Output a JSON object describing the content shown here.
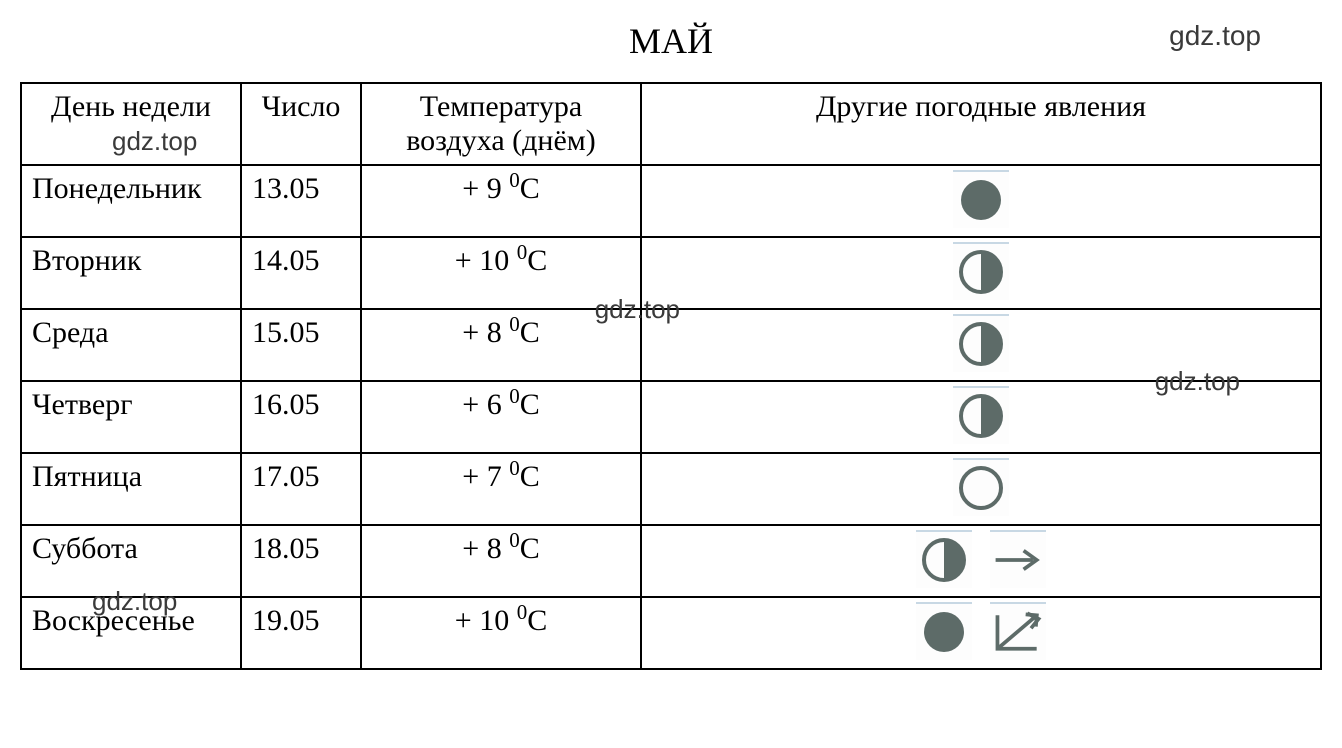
{
  "title": "МАЙ",
  "watermarks": {
    "top_right": "gdz.top",
    "in_header": "gdz.top",
    "mid_temp": "gdz.top",
    "right_mid": "gdz.top",
    "bottom_left": "gdz.top"
  },
  "headers": {
    "day": "День недели",
    "date": "Число",
    "temp": "Температура воздуха (днём)",
    "weather": "Другие погодные явления"
  },
  "colors": {
    "icon_fill": "#5d6b68",
    "icon_stroke": "#5d6b68",
    "icon_bg": "#fdfdfd",
    "icon_topline": "#c8d8e4",
    "text": "#000000",
    "border": "#000000",
    "watermark": "#3a3a3a"
  },
  "rows": [
    {
      "day": "Понедельник",
      "date": "13.05",
      "temp_val": "+ 9",
      "icons": [
        "full"
      ]
    },
    {
      "day": "Вторник",
      "date": "14.05",
      "temp_val": "+ 10",
      "icons": [
        "half"
      ]
    },
    {
      "day": "Среда",
      "date": "15.05",
      "temp_val": "+ 8",
      "icons": [
        "half"
      ]
    },
    {
      "day": "Четверг",
      "date": "16.05",
      "temp_val": "+ 6",
      "icons": [
        "half"
      ]
    },
    {
      "day": "Пятница",
      "date": "17.05",
      "temp_val": "+ 7",
      "icons": [
        "empty"
      ]
    },
    {
      "day": "Суббота",
      "date": "18.05",
      "temp_val": "+ 8",
      "icons": [
        "half",
        "arrow-right"
      ]
    },
    {
      "day": "Воскресенье",
      "date": "19.05",
      "temp_val": "+ 10",
      "icons": [
        "full",
        "arrow-sw-box"
      ]
    }
  ],
  "icon_defs": {
    "full": "circle-filled",
    "half": "circle-half-right-filled",
    "empty": "circle-outline",
    "arrow-right": "horizontal-arrow-right",
    "arrow-sw-box": "diagonal-arrow-into-corner"
  }
}
